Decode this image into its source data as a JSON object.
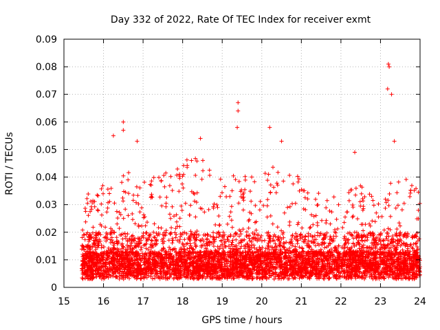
{
  "chart_data": {
    "type": "scatter",
    "title": "Day 332 of 2022, Rate Of TEC Index for receiver exmt",
    "xlabel": "GPS time / hours",
    "ylabel": "ROTI / TECUs",
    "xlim": [
      15,
      24
    ],
    "ylim": [
      0,
      0.09
    ],
    "x_ticks": [
      "15",
      "16",
      "17",
      "18",
      "19",
      "20",
      "21",
      "22",
      "23",
      "24"
    ],
    "y_ticks": [
      "0",
      "0.01",
      "0.02",
      "0.03",
      "0.04",
      "0.05",
      "0.06",
      "0.07",
      "0.08",
      "0.09"
    ],
    "grid": true,
    "legend": "none",
    "marker": "+",
    "color": "#ff0000",
    "x_range_of_points": [
      15.45,
      24.0
    ],
    "notable_points": [
      {
        "x": 16.5,
        "y": 0.06
      },
      {
        "x": 16.5,
        "y": 0.057
      },
      {
        "x": 16.25,
        "y": 0.055
      },
      {
        "x": 16.85,
        "y": 0.053
      },
      {
        "x": 18.45,
        "y": 0.054
      },
      {
        "x": 19.4,
        "y": 0.067
      },
      {
        "x": 19.4,
        "y": 0.064
      },
      {
        "x": 19.38,
        "y": 0.058
      },
      {
        "x": 20.2,
        "y": 0.058
      },
      {
        "x": 20.5,
        "y": 0.053
      },
      {
        "x": 22.35,
        "y": 0.049
      },
      {
        "x": 23.2,
        "y": 0.081
      },
      {
        "x": 23.22,
        "y": 0.08
      },
      {
        "x": 23.18,
        "y": 0.072
      },
      {
        "x": 23.28,
        "y": 0.07
      },
      {
        "x": 23.35,
        "y": 0.053
      }
    ]
  }
}
